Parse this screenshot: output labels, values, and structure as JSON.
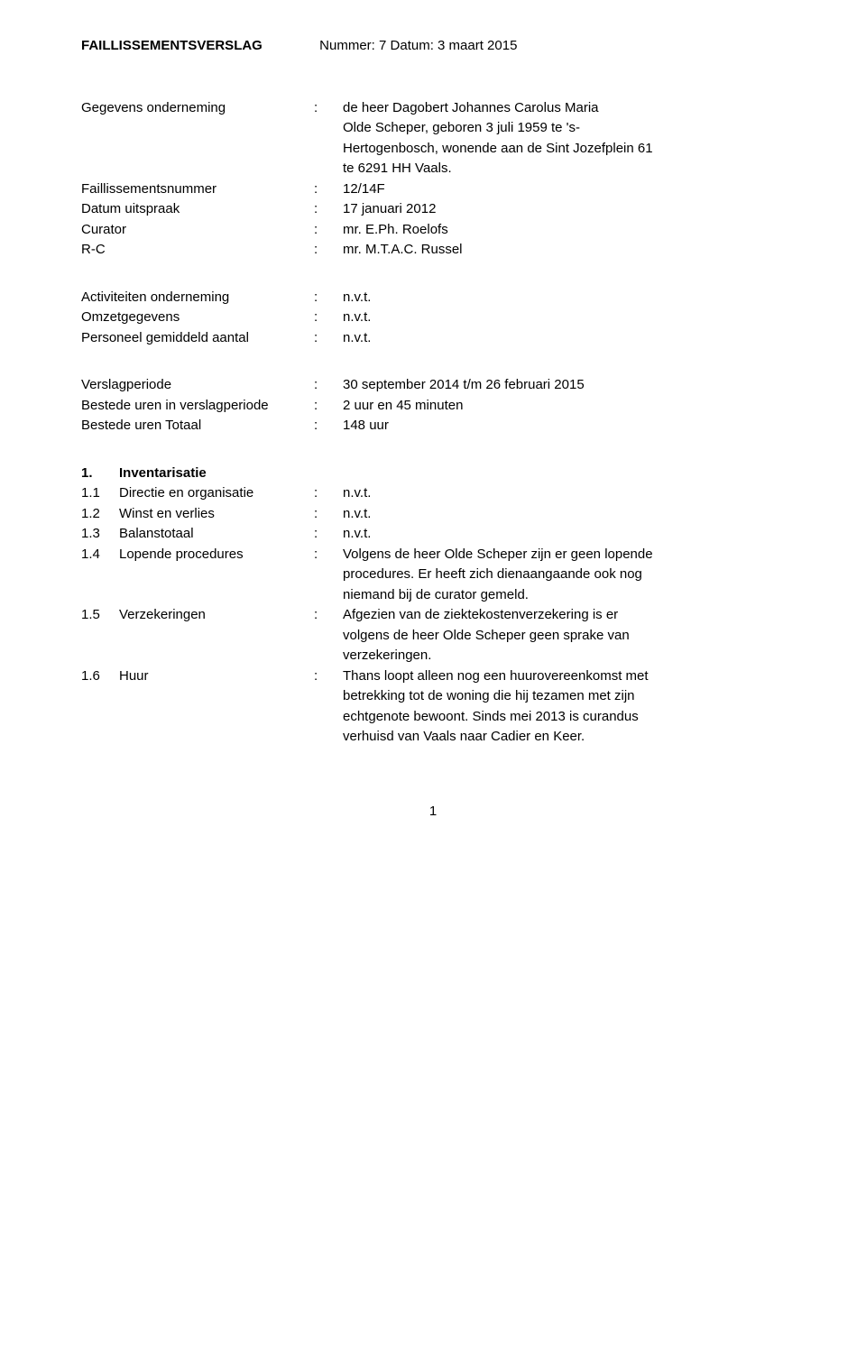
{
  "header": {
    "title": "FAILLISSEMENTSVERSLAG",
    "meta": "Nummer: 7  Datum: 3 maart 2015"
  },
  "block1": {
    "gegevens": {
      "label": "Gegevens onderneming",
      "line1": "de heer Dagobert Johannes Carolus Maria",
      "line2": "Olde Scheper, geboren 3 juli 1959 te 's-",
      "line3": "Hertogenbosch, wonende aan de Sint Jozefplein 61",
      "line4": "te 6291 HH Vaals."
    },
    "faillnr": {
      "label": "Faillissementsnummer",
      "value": "12/14F"
    },
    "datum": {
      "label": "Datum uitspraak",
      "value": "17 januari 2012"
    },
    "curator": {
      "label": "Curator",
      "value": "mr. E.Ph. Roelofs"
    },
    "rc": {
      "label": "R-C",
      "value": "mr. M.T.A.C. Russel"
    }
  },
  "block2": {
    "activiteiten": {
      "label": "Activiteiten onderneming",
      "value": "n.v.t."
    },
    "omzet": {
      "label": "Omzetgegevens",
      "value": "n.v.t."
    },
    "personeel": {
      "label": "Personeel gemiddeld aantal",
      "value": "n.v.t."
    }
  },
  "block3": {
    "periode": {
      "label": "Verslagperiode",
      "value": "30 september 2014 t/m 26 februari 2015"
    },
    "uren_periode": {
      "label": "Bestede uren in verslagperiode",
      "value": "2 uur en 45 minuten"
    },
    "uren_totaal": {
      "label": "Bestede uren Totaal",
      "value": "148 uur"
    }
  },
  "section1": {
    "num": "1.",
    "title": "Inventarisatie",
    "r1": {
      "num": "1.1",
      "label": "Directie en organisatie",
      "value": "n.v.t."
    },
    "r2": {
      "num": "1.2",
      "label": "Winst en verlies",
      "value": "n.v.t."
    },
    "r3": {
      "num": "1.3",
      "label": "Balanstotaal",
      "value": "n.v.t."
    },
    "r4": {
      "num": "1.4",
      "label": "Lopende procedures",
      "l1": "Volgens de heer Olde Scheper zijn er geen lopende",
      "l2": "procedures. Er heeft zich dienaangaande ook nog",
      "l3": "niemand bij de curator gemeld."
    },
    "r5": {
      "num": "1.5",
      "label": "Verzekeringen",
      "l1": "Afgezien van de ziektekostenverzekering is er",
      "l2": "volgens de heer Olde Scheper geen sprake van",
      "l3": "verzekeringen."
    },
    "r6": {
      "num": "1.6",
      "label": "Huur",
      "l1": "Thans loopt alleen nog een huurovereenkomst met",
      "l2": "betrekking tot de woning die hij tezamen met zijn",
      "l3": "echtgenote bewoont. Sinds mei 2013 is curandus",
      "l4": "verhuisd van Vaals naar Cadier en Keer."
    }
  },
  "page_number": "1"
}
